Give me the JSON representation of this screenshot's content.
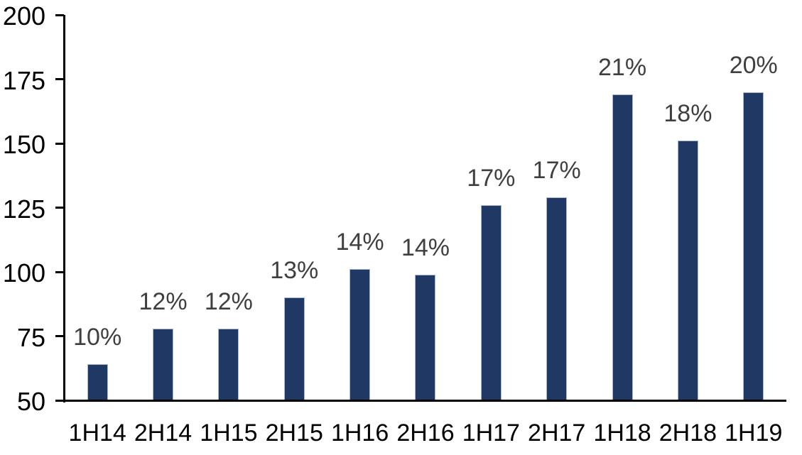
{
  "chart_data": {
    "type": "bar",
    "title": "",
    "xlabel": "",
    "ylabel": "",
    "categories": [
      "1H14",
      "2H14",
      "1H15",
      "2H15",
      "1H16",
      "2H16",
      "1H17",
      "2H17",
      "1H18",
      "2H18",
      "1H19"
    ],
    "values": [
      64,
      78,
      78,
      90,
      101,
      99,
      126,
      129,
      169,
      151,
      170
    ],
    "bar_labels": [
      "10%",
      "12%",
      "12%",
      "13%",
      "14%",
      "14%",
      "17%",
      "17%",
      "21%",
      "18%",
      "20%"
    ],
    "ylim": [
      50,
      200
    ],
    "yticks": [
      200,
      175,
      150,
      125,
      100,
      75,
      50
    ],
    "grid": false,
    "legend": "none",
    "colors": {
      "bar_fill": "#1f3864",
      "bar_border": "#a9b6cf",
      "axis": "#000000",
      "bar_label_text": "#3f3f3f",
      "axis_label_text": "#000000",
      "background": "#ffffff"
    }
  }
}
